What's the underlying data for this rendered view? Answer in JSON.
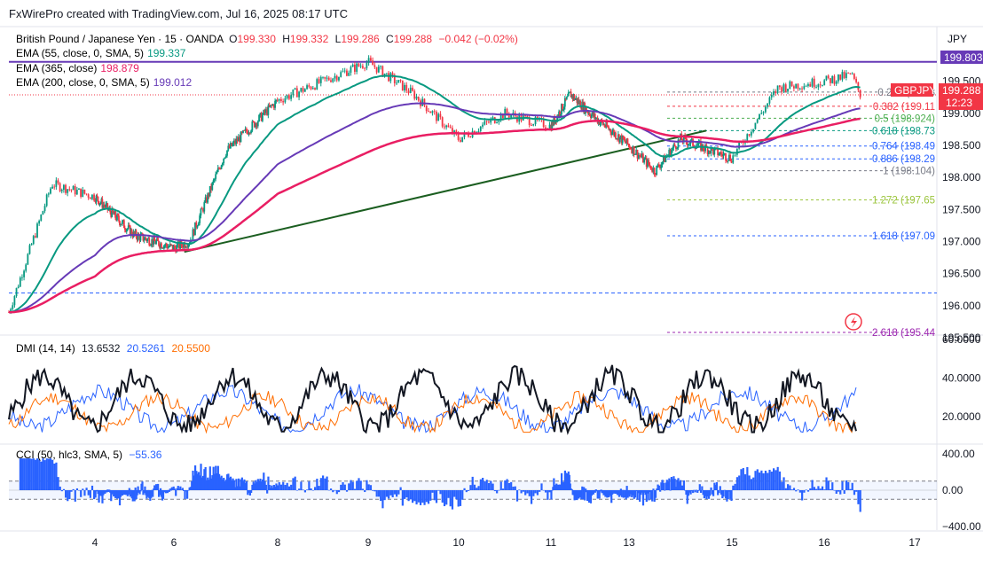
{
  "watermark": "FxWirePro created with TradingView.com, Jul 16, 2025 08:17 UTC",
  "currency_label": "JPY",
  "symbol": {
    "title": "British Pound / Japanese Yen · 15 · OANDA",
    "open_label": "O",
    "open": "199.330",
    "high_label": "H",
    "high": "199.332",
    "low_label": "L",
    "low": "199.286",
    "close_label": "C",
    "close": "199.288",
    "change": "−0.042 (−0.02%)",
    "ohlc_color": "#f23645",
    "ticker_badge": "GBPJPY",
    "last_price": "199.288",
    "countdown": "12:23",
    "badge_color": "#f23645"
  },
  "indicators": [
    {
      "label": "EMA (55, close, 0, SMA, 5)",
      "value": "199.337",
      "color": "#089981"
    },
    {
      "label": "EMA (365, close)",
      "value": "198.879",
      "color": "#e91e63"
    },
    {
      "label": "EMA (200, close, 0, SMA, 5)",
      "value": "199.012",
      "color": "#673ab7"
    }
  ],
  "price_axis": {
    "ticks": [
      "199.500",
      "199.000",
      "198.500",
      "198.000",
      "197.500",
      "197.000",
      "196.500",
      "196.000",
      "195.500"
    ],
    "resistance_label": "199.803",
    "resistance_color": "#673ab7"
  },
  "fib_levels": [
    {
      "ratio": "0.236",
      "label": "0.236 (199.3",
      "color": "#787b86"
    },
    {
      "ratio": "0.382",
      "label": "0.382 (199.11",
      "color": "#f23645"
    },
    {
      "ratio": "0.5",
      "label": "0.5 (198.924)",
      "color": "#4caf50"
    },
    {
      "ratio": "0.618",
      "label": "0.618 (198.73",
      "color": "#089981"
    },
    {
      "ratio": "0.764",
      "label": "0.764 (198.49",
      "color": "#2962ff"
    },
    {
      "ratio": "0.886",
      "label": "0.886 (198.29",
      "color": "#2962ff"
    },
    {
      "ratio": "1",
      "label": "1 (198.104)",
      "color": "#787b86"
    },
    {
      "ratio": "1.272",
      "label": "1.272 (197.65",
      "color": "#9bc53d"
    },
    {
      "ratio": "1.618",
      "label": "1.618 (197.09",
      "color": "#2962ff"
    },
    {
      "ratio": "2.618",
      "label": "2.618 (195.44",
      "color": "#9c27b0"
    }
  ],
  "x_axis": {
    "ticks": [
      "4",
      "6",
      "8",
      "9",
      "10",
      "11",
      "13",
      "15",
      "16",
      "17"
    ]
  },
  "dmi": {
    "label": "DMI (14, 14)",
    "values": [
      {
        "v": "13.6532",
        "color": "#131722"
      },
      {
        "v": "20.5261",
        "color": "#2962ff"
      },
      {
        "v": "20.5500",
        "color": "#ff6d00"
      }
    ],
    "ticks": [
      "60.0000",
      "40.0000",
      "20.0000"
    ]
  },
  "cci": {
    "label": "CCI (50, hlc3, SMA, 5)",
    "value": "−55.36",
    "value_color": "#2962ff",
    "ticks": [
      "400.00",
      "0.00",
      "−400.00"
    ]
  },
  "chart_data": {
    "type": "line",
    "title": "British Pound / Japanese Yen · 15 · OANDA",
    "x": [
      "4",
      "6",
      "8",
      "9",
      "10",
      "11",
      "13",
      "15",
      "16",
      "17"
    ],
    "ylim": [
      195.5,
      199.9
    ],
    "price_path": [
      [
        "3",
        195.9
      ],
      [
        "3.5",
        197.9
      ],
      [
        "4",
        197.7
      ],
      [
        "5",
        197.1
      ],
      [
        "6",
        196.9
      ],
      [
        "6.3",
        197.0
      ],
      [
        "7",
        198.4
      ],
      [
        "8",
        199.2
      ],
      [
        "9",
        199.8
      ],
      [
        "9.5",
        199.3
      ],
      [
        "10",
        198.6
      ],
      [
        "10.5",
        199.0
      ],
      [
        "11",
        198.8
      ],
      [
        "11.5",
        199.3
      ],
      [
        "12",
        199.0
      ],
      [
        "13",
        198.5
      ],
      [
        "13.5",
        198.1
      ],
      [
        "14",
        198.6
      ],
      [
        "15",
        198.3
      ],
      [
        "15.5",
        199.4
      ],
      [
        "16",
        199.5
      ],
      [
        "16.3",
        199.6
      ],
      [
        "16.4",
        199.29
      ]
    ],
    "series": [
      {
        "name": "EMA (55, close, 0, SMA, 5)",
        "last": 199.337
      },
      {
        "name": "EMA (365, close)",
        "last": 198.879
      },
      {
        "name": "EMA (200, close, 0, SMA, 5)",
        "last": 199.012
      }
    ],
    "trendline": [
      [
        "6.2",
        196.84
      ],
      [
        "14.5",
        198.73
      ]
    ],
    "horizontal_levels": [
      199.803,
      196.2
    ],
    "grid": false
  }
}
